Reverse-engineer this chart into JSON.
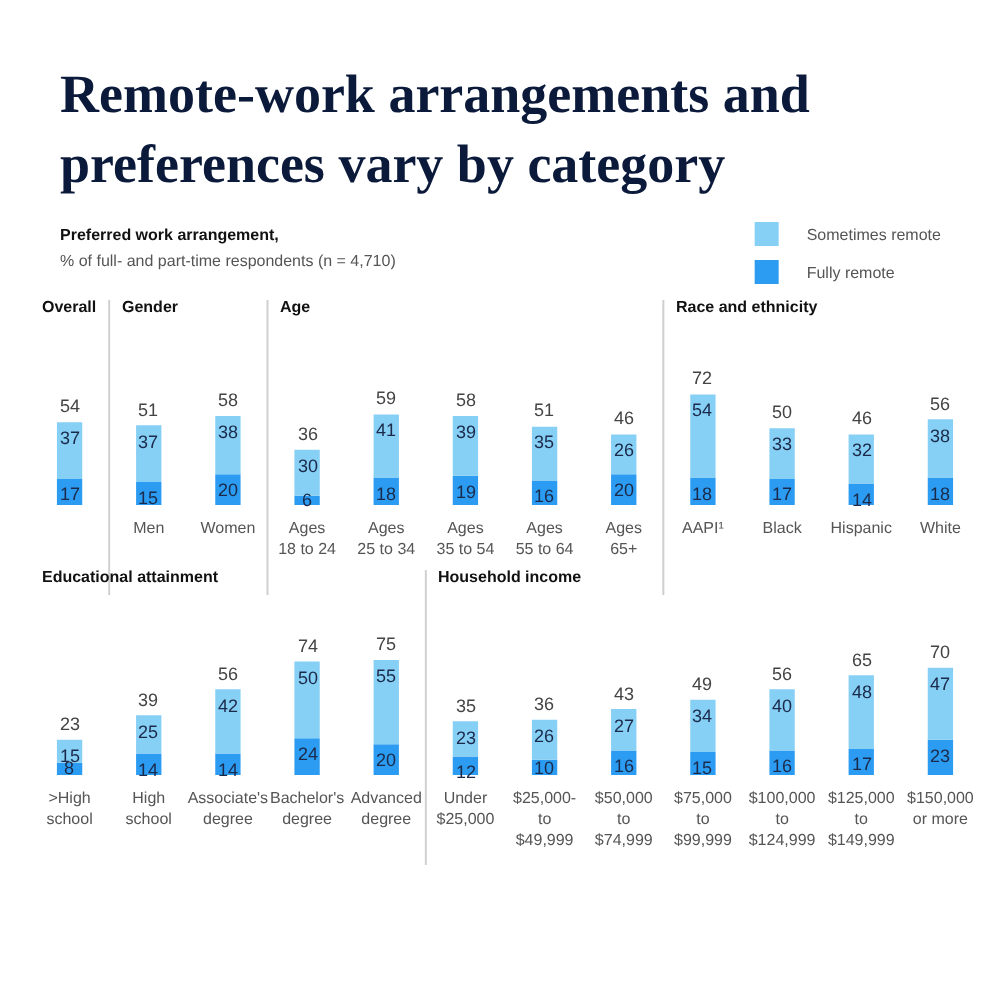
{
  "chart_data": [
    {
      "type": "bar",
      "title": "Overall",
      "stacked": true,
      "tick_labels": "x",
      "annotations": [
        "Remote-work arrangements and preferences vary by category",
        "Preferred work arrangement,",
        "% of full- and part-time respondents (n = 4,710)"
      ],
      "categories": [
        null
      ],
      "totals": [
        "54"
      ],
      "series": [
        {
          "color": "#2b9cf2",
          "values": [
            17
          ],
          "value_labels": [
            "17"
          ]
        },
        {
          "color": "#86cff5",
          "values": [
            37
          ],
          "value_labels": [
            "37"
          ]
        }
      ]
    },
    {
      "type": "bar",
      "title": "Gender",
      "stacked": true,
      "tick_labels": "x",
      "categories": [
        "Men",
        "Women"
      ],
      "totals": [
        "51",
        "58"
      ],
      "series": [
        {
          "color": "#2b9cf2",
          "values": [
            15,
            20
          ],
          "value_labels": [
            "15",
            "20"
          ]
        },
        {
          "color": "#86cff5",
          "values": [
            37,
            38
          ],
          "value_labels": [
            "37",
            "38"
          ]
        }
      ]
    },
    {
      "type": "bar",
      "title": "Age",
      "stacked": true,
      "tick_labels": "x",
      "categories": [
        "Ages\n18 to 24",
        "Ages\n25 to 34",
        "Ages\n35 to 54",
        "Ages\n55 to 64",
        "Ages\n65+"
      ],
      "totals": [
        "36",
        "59",
        "58",
        "51",
        "46"
      ],
      "series": [
        {
          "color": "#2b9cf2",
          "values": [
            6,
            18,
            19,
            16,
            20
          ],
          "value_labels": [
            "6",
            "18",
            "19",
            "16",
            "20"
          ]
        },
        {
          "color": "#86cff5",
          "values": [
            30,
            41,
            39,
            35,
            26
          ],
          "value_labels": [
            "30",
            "41",
            "39",
            "35",
            "26"
          ]
        }
      ]
    },
    {
      "type": "bar",
      "title": "Race and ethnicity",
      "stacked": true,
      "tick_labels": "x",
      "legend": "top",
      "categories": [
        "AAPI¹",
        "Black",
        "Hispanic",
        "White"
      ],
      "totals": [
        "72",
        "50",
        "46",
        "56"
      ],
      "series": [
        {
          "name": "Fully remote",
          "color": "#2b9cf2",
          "values": [
            18,
            17,
            14,
            18
          ],
          "value_labels": [
            "18",
            "17",
            "14",
            "18"
          ]
        },
        {
          "name": "Sometimes remote",
          "color": "#86cff5",
          "values": [
            54,
            33,
            32,
            38
          ],
          "value_labels": [
            "54",
            "33",
            "32",
            "38"
          ]
        }
      ]
    },
    {
      "type": "bar",
      "title": "Educational attainment",
      "stacked": true,
      "tick_labels": "x",
      "categories": [
        ">High\nschool",
        "High\nschool",
        "Associate's\ndegree",
        "Bachelor's\ndegree",
        "Advanced\ndegree"
      ],
      "totals": [
        "23",
        "39",
        "56",
        "74",
        "75"
      ],
      "series": [
        {
          "color": "#2b9cf2",
          "values": [
            8,
            14,
            14,
            24,
            20
          ],
          "value_labels": [
            "8",
            "14",
            "14",
            "24",
            "20"
          ]
        },
        {
          "color": "#86cff5",
          "values": [
            15,
            25,
            42,
            50,
            55
          ],
          "value_labels": [
            "15",
            "25",
            "42",
            "50",
            "55"
          ]
        }
      ]
    },
    {
      "type": "bar",
      "title": "Household income",
      "stacked": true,
      "tick_labels": "x",
      "categories": [
        "Under\n$25,000",
        "$25,000-\nto\n$49,999",
        "$50,000\nto\n$74,999",
        "$75,000\nto\n$99,999",
        "$100,000\nto\n$124,999",
        "$125,000\nto\n$149,999",
        "$150,000\nor more"
      ],
      "totals": [
        "35",
        "36",
        "43",
        "49",
        "56",
        "65",
        "70"
      ],
      "series": [
        {
          "color": "#2b9cf2",
          "values": [
            12,
            10,
            16,
            15,
            16,
            17,
            23
          ],
          "value_labels": [
            "12",
            "10",
            "16",
            "15",
            "16",
            "17",
            "23"
          ]
        },
        {
          "color": "#86cff5",
          "values": [
            23,
            26,
            27,
            34,
            40,
            48,
            47
          ],
          "value_labels": [
            "23",
            "26",
            "27",
            "34",
            "40",
            "48",
            "47"
          ]
        }
      ]
    }
  ]
}
